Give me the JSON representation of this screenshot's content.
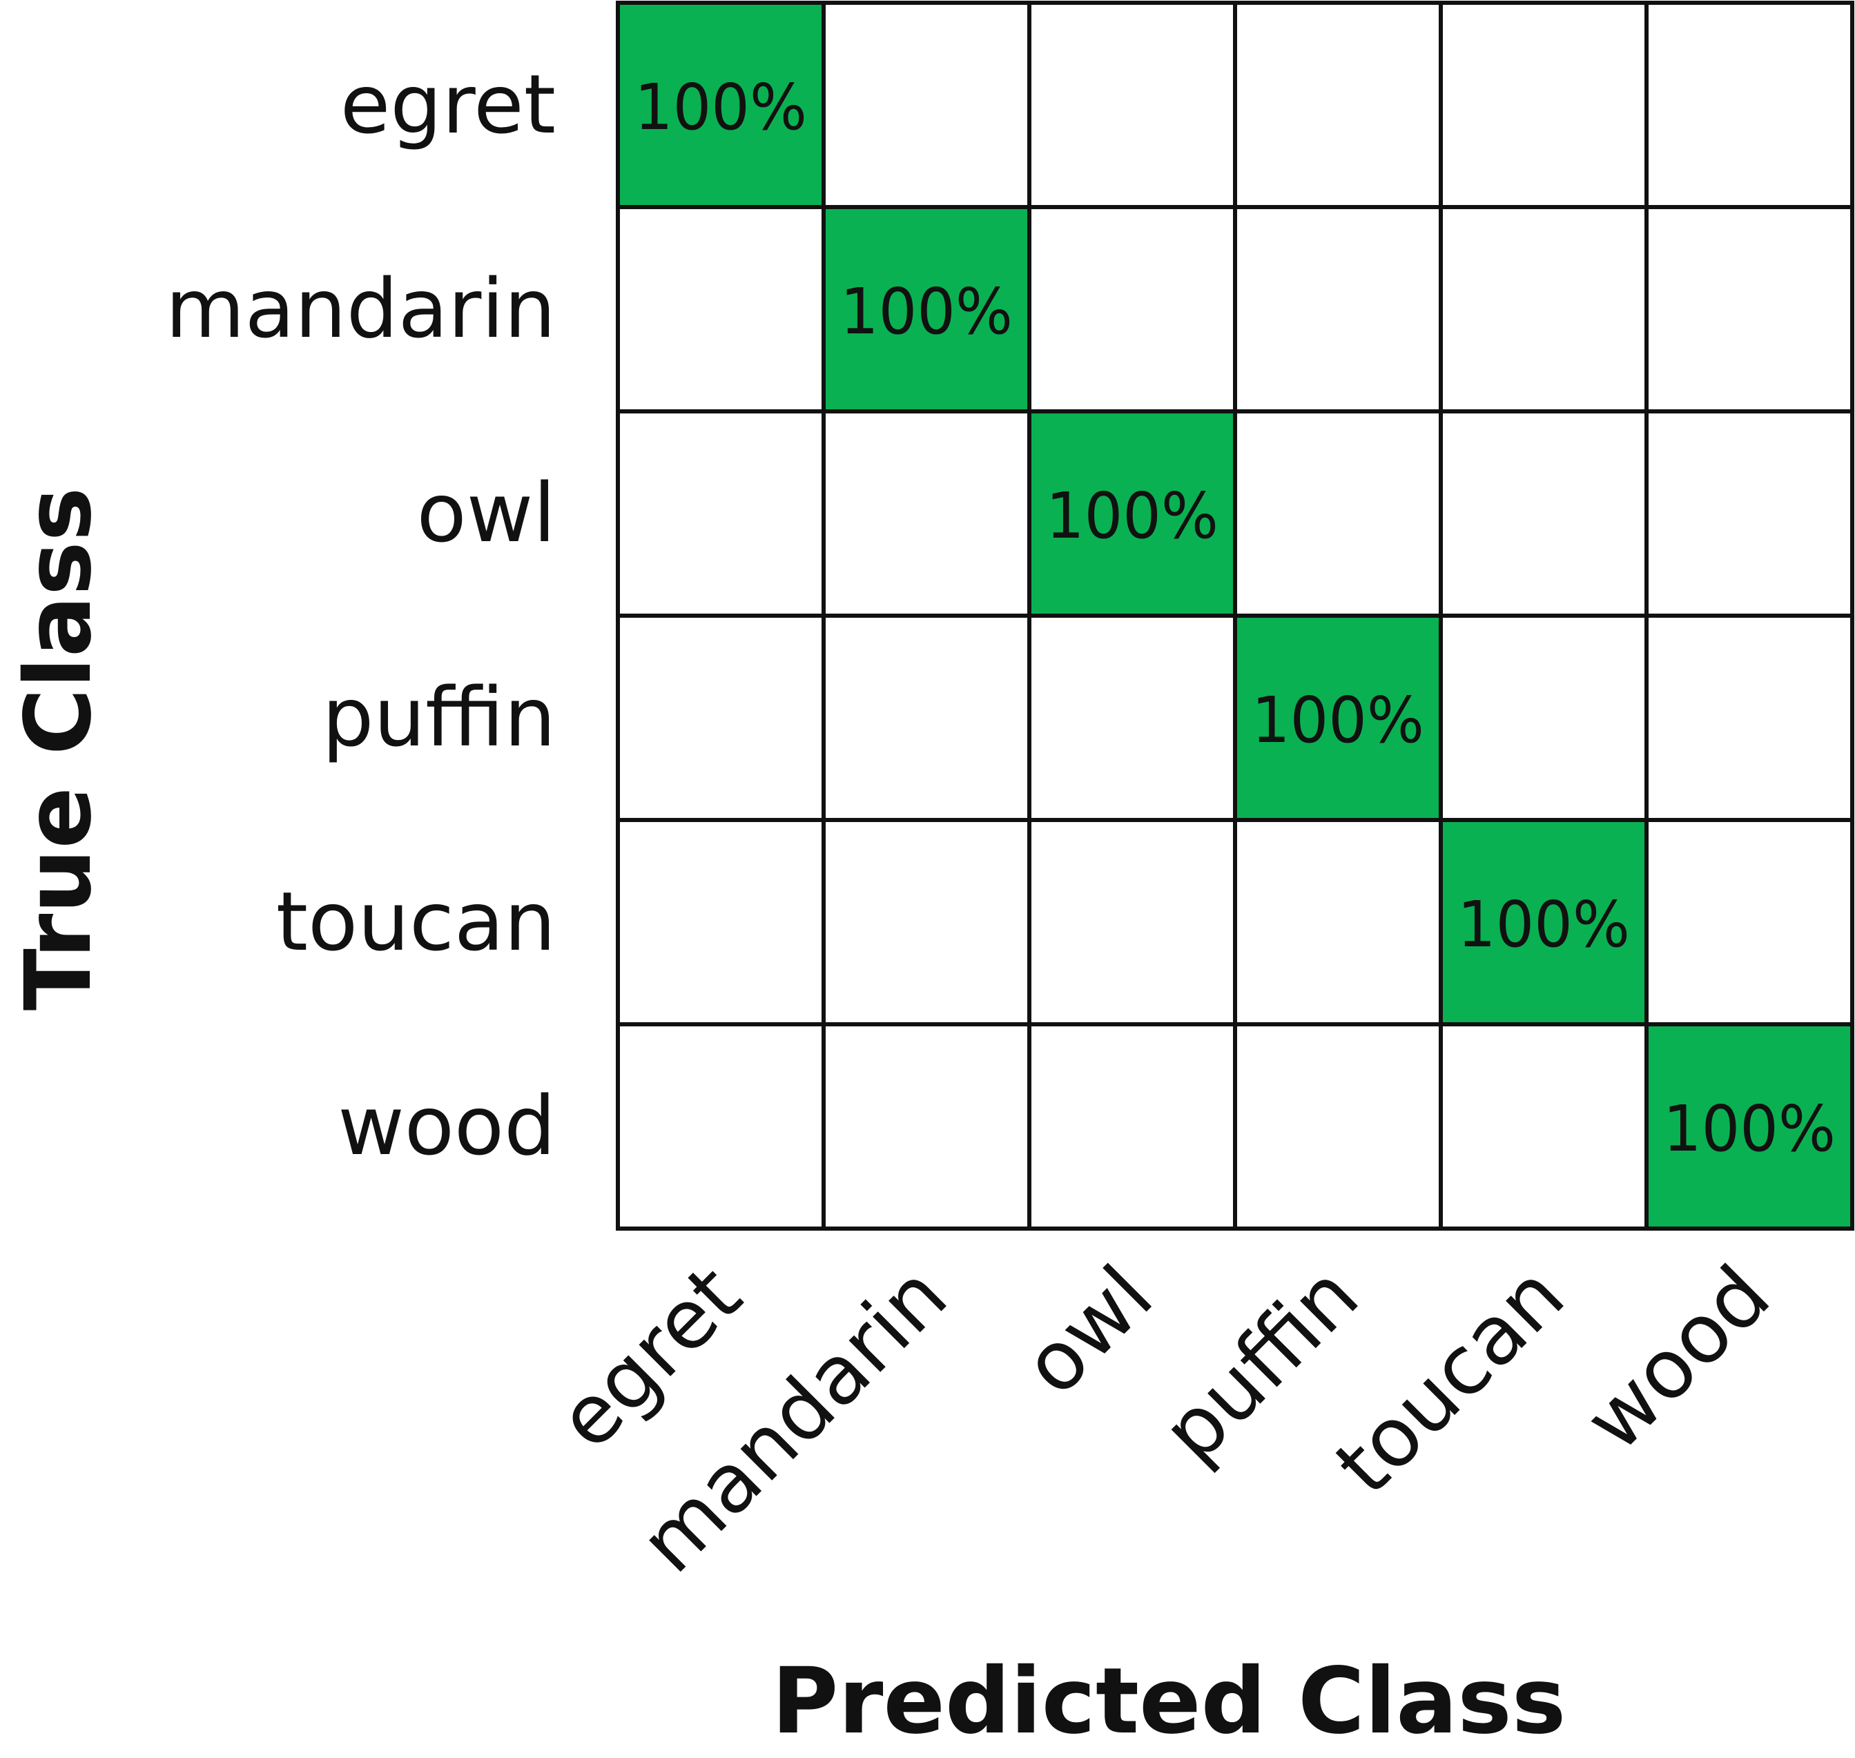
{
  "chart_data": {
    "type": "heatmap",
    "title": "",
    "xlabel": "Predicted Class",
    "ylabel": "True Class",
    "x_categories": [
      "egret",
      "mandarin",
      "owl",
      "puffin",
      "toucan",
      "wood"
    ],
    "y_categories": [
      "egret",
      "mandarin",
      "owl",
      "puffin",
      "toucan",
      "wood"
    ],
    "values": [
      [
        100,
        0,
        0,
        0,
        0,
        0
      ],
      [
        0,
        100,
        0,
        0,
        0,
        0
      ],
      [
        0,
        0,
        100,
        0,
        0,
        0
      ],
      [
        0,
        0,
        0,
        100,
        0,
        0
      ],
      [
        0,
        0,
        0,
        0,
        100,
        0
      ],
      [
        0,
        0,
        0,
        0,
        0,
        100
      ]
    ],
    "cell_labels": [
      [
        "100%",
        "",
        "",
        "",
        "",
        ""
      ],
      [
        "",
        "100%",
        "",
        "",
        "",
        ""
      ],
      [
        "",
        "",
        "100%",
        "",
        "",
        ""
      ],
      [
        "",
        "",
        "",
        "100%",
        "",
        ""
      ],
      [
        "",
        "",
        "",
        "",
        "100%",
        ""
      ],
      [
        "",
        "",
        "",
        "",
        "",
        "100%"
      ]
    ],
    "colors": {
      "filled": "#0ab152",
      "empty": "#ffffff",
      "grid": "#111111"
    },
    "legend": "none"
  }
}
